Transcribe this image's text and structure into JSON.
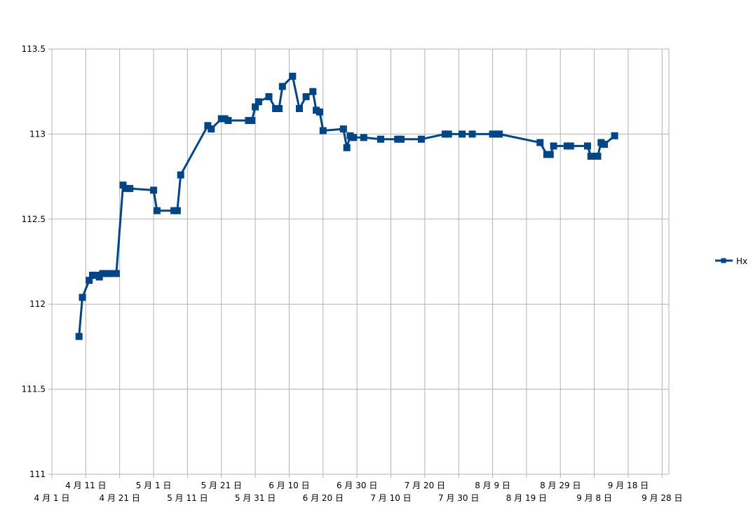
{
  "chart_data": {
    "type": "line",
    "title": "",
    "xlabel": "",
    "ylabel": "",
    "x_axis_start": "2023-04-01",
    "x_ticks": [
      "4 月 1 日",
      "4 月 11 日",
      "4 月 21 日",
      "5 月 1 日",
      "5 月 11 日",
      "5 月 21 日",
      "5 月 31 日",
      "6 月 10 日",
      "6 月 20 日",
      "6 月 30 日",
      "7 月 10 日",
      "7 月 20 日",
      "7 月 30 日",
      "8 月 9 日",
      "8 月 19 日",
      "8 月 29 日",
      "9 月 8 日",
      "9 月 18 日",
      "9 月 28 日"
    ],
    "xlim": [
      "2023-04-01",
      "2023-09-30"
    ],
    "y_ticks": [
      "111",
      "111.5",
      "112",
      "112.5",
      "113",
      "113.5"
    ],
    "ylim": [
      111,
      113.5
    ],
    "grid": true,
    "legend_position": "right",
    "colors": {
      "series": "#004586",
      "grid": "#b3b3b3"
    },
    "series": [
      {
        "name": "Hx",
        "points": [
          [
            "2023-04-09",
            111.81
          ],
          [
            "2023-04-10",
            112.04
          ],
          [
            "2023-04-12",
            112.14
          ],
          [
            "2023-04-13",
            112.17
          ],
          [
            "2023-04-14",
            112.17
          ],
          [
            "2023-04-15",
            112.16
          ],
          [
            "2023-04-16",
            112.18
          ],
          [
            "2023-04-17",
            112.18
          ],
          [
            "2023-04-18",
            112.18
          ],
          [
            "2023-04-19",
            112.18
          ],
          [
            "2023-04-20",
            112.18
          ],
          [
            "2023-04-22",
            112.7
          ],
          [
            "2023-04-23",
            112.68
          ],
          [
            "2023-04-24",
            112.68
          ],
          [
            "2023-05-01",
            112.67
          ],
          [
            "2023-05-02",
            112.55
          ],
          [
            "2023-05-07",
            112.55
          ],
          [
            "2023-05-08",
            112.55
          ],
          [
            "2023-05-09",
            112.76
          ],
          [
            "2023-05-17",
            113.05
          ],
          [
            "2023-05-18",
            113.03
          ],
          [
            "2023-05-21",
            113.09
          ],
          [
            "2023-05-22",
            113.09
          ],
          [
            "2023-05-23",
            113.08
          ],
          [
            "2023-05-29",
            113.08
          ],
          [
            "2023-05-30",
            113.08
          ],
          [
            "2023-05-31",
            113.16
          ],
          [
            "2023-06-01",
            113.19
          ],
          [
            "2023-06-04",
            113.22
          ],
          [
            "2023-06-06",
            113.15
          ],
          [
            "2023-06-07",
            113.15
          ],
          [
            "2023-06-08",
            113.28
          ],
          [
            "2023-06-11",
            113.34
          ],
          [
            "2023-06-13",
            113.15
          ],
          [
            "2023-06-15",
            113.22
          ],
          [
            "2023-06-17",
            113.25
          ],
          [
            "2023-06-18",
            113.14
          ],
          [
            "2023-06-19",
            113.13
          ],
          [
            "2023-06-20",
            113.02
          ],
          [
            "2023-06-26",
            113.03
          ],
          [
            "2023-06-27",
            112.92
          ],
          [
            "2023-06-28",
            112.99
          ],
          [
            "2023-06-29",
            112.98
          ],
          [
            "2023-07-02",
            112.98
          ],
          [
            "2023-07-07",
            112.97
          ],
          [
            "2023-07-12",
            112.97
          ],
          [
            "2023-07-13",
            112.97
          ],
          [
            "2023-07-19",
            112.97
          ],
          [
            "2023-07-26",
            113.0
          ],
          [
            "2023-07-27",
            113.0
          ],
          [
            "2023-07-31",
            113.0
          ],
          [
            "2023-08-03",
            113.0
          ],
          [
            "2023-08-09",
            113.0
          ],
          [
            "2023-08-10",
            113.0
          ],
          [
            "2023-08-11",
            113.0
          ],
          [
            "2023-08-23",
            112.95
          ],
          [
            "2023-08-25",
            112.88
          ],
          [
            "2023-08-26",
            112.88
          ],
          [
            "2023-08-27",
            112.93
          ],
          [
            "2023-08-31",
            112.93
          ],
          [
            "2023-09-01",
            112.93
          ],
          [
            "2023-09-06",
            112.93
          ],
          [
            "2023-09-07",
            112.87
          ],
          [
            "2023-09-09",
            112.87
          ],
          [
            "2023-09-10",
            112.95
          ],
          [
            "2023-09-11",
            112.94
          ],
          [
            "2023-09-14",
            112.99
          ]
        ]
      }
    ]
  }
}
